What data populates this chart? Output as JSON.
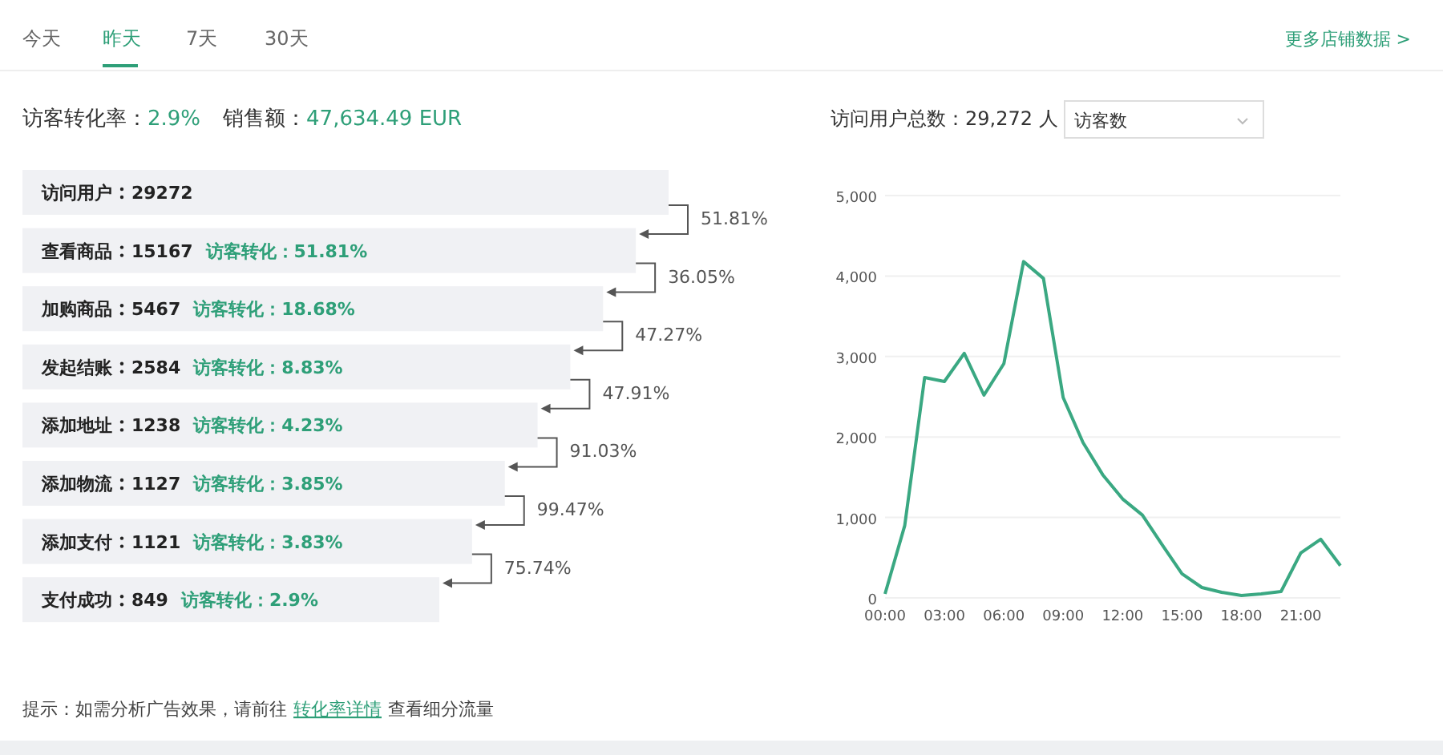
{
  "chart_data": [
    {
      "type": "other",
      "annotations": [
        "今天",
        "昨天",
        "7天",
        "30天",
        "更多店铺数据 >",
        "访客转化率：",
        "2.9%",
        "销售额：",
        "47,634.49 EUR"
      ]
    },
    {
      "type": "other",
      "categories": [
        "访问用户",
        "查看商品",
        "加购商品",
        "发起结账",
        "添加地址",
        "添加物流",
        "添加支付",
        "支付成功"
      ],
      "data_labels": true,
      "values": [
        29272,
        15167,
        5467,
        2584,
        1238,
        1127,
        1121,
        849
      ],
      "annotations": [
        "访客转化：51.81%",
        "访客转化：18.68%",
        "访客转化：8.83%",
        "访客转化：4.23%",
        "访客转化：3.85%",
        "访客转化：3.83%",
        "访客转化：2.9%",
        "51.81%",
        "36.05%",
        "47.27%",
        "47.91%",
        "91.03%",
        "99.47%",
        "75.74%",
        "提示：如需分析广告效果，请前往",
        "转化率详情",
        "查看细分流量"
      ]
    },
    {
      "type": "line",
      "title": "访问用户总数：29,272 人",
      "legend_title": "访客数",
      "x": [
        0,
        1,
        2,
        3,
        4,
        5,
        6,
        7,
        8,
        9,
        10,
        11,
        12,
        13,
        14,
        15,
        16,
        17,
        18,
        19,
        20,
        21,
        22,
        23
      ],
      "series": [
        {
          "color": "#3aa882",
          "values": [
            50,
            900,
            2740,
            2690,
            3040,
            2520,
            2910,
            4180,
            3970,
            2490,
            1930,
            1530,
            1230,
            1030,
            660,
            300,
            130,
            70,
            30,
            50,
            80,
            560,
            730,
            400
          ]
        }
      ],
      "xlim": [
        0,
        23
      ],
      "xticks": [
        {
          "value": 0,
          "label": "00:00"
        },
        {
          "value": 3,
          "label": "03:00"
        },
        {
          "value": 6,
          "label": "06:00"
        },
        {
          "value": 9,
          "label": "09:00"
        },
        {
          "value": 12,
          "label": "12:00"
        },
        {
          "value": 15,
          "label": "15:00"
        },
        {
          "value": 18,
          "label": "18:00"
        },
        {
          "value": 21,
          "label": "21:00"
        }
      ],
      "ylim": [
        0,
        5000
      ],
      "yticks": [
        {
          "value": 0,
          "label": "0"
        },
        {
          "value": 1000,
          "label": "1,000"
        },
        {
          "value": 2000,
          "label": "2,000"
        },
        {
          "value": 3000,
          "label": "3,000"
        },
        {
          "value": 4000,
          "label": "4,000"
        },
        {
          "value": 5000,
          "label": "5,000"
        }
      ],
      "grid": "y",
      "marker": "none",
      "line_style": "solid"
    }
  ]
}
